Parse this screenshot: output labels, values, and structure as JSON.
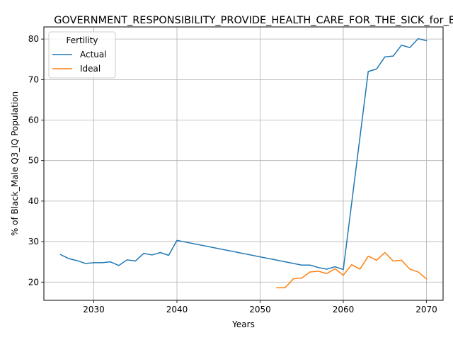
{
  "chart_data": {
    "type": "line",
    "title": "GOVERNMENT_RESPONSIBILITY_PROVIDE_HEALTH_CARE_FOR_THE_SICK_for_B",
    "xlabel": "Years",
    "ylabel": "% of Black_Male Q3_IQ Population",
    "xlim": [
      2024,
      2072
    ],
    "ylim": [
      15.5,
      83
    ],
    "xticks": [
      2030,
      2040,
      2050,
      2060,
      2070
    ],
    "yticks": [
      20,
      30,
      40,
      50,
      60,
      70,
      80
    ],
    "grid": true,
    "legend": {
      "title": "Fertility",
      "placement": "upper-left"
    },
    "series": [
      {
        "name": "Actual",
        "color": "#1f77b4",
        "x": [
          2026,
          2027,
          2028,
          2029,
          2030,
          2031,
          2032,
          2033,
          2034,
          2035,
          2036,
          2037,
          2038,
          2039,
          2040,
          2055,
          2056,
          2057,
          2058,
          2059,
          2060,
          2063,
          2064,
          2065,
          2066,
          2067,
          2068,
          2069,
          2070
        ],
        "y": [
          26.8,
          25.8,
          25.3,
          24.6,
          24.8,
          24.8,
          25.0,
          24.1,
          25.5,
          25.2,
          27.1,
          26.7,
          27.3,
          26.6,
          30.3,
          24.2,
          24.2,
          23.6,
          23.2,
          23.8,
          23.1,
          72.0,
          72.6,
          75.6,
          75.8,
          78.5,
          77.9,
          80.1,
          79.6
        ]
      },
      {
        "name": "Ideal",
        "color": "#ff7f0e",
        "x": [
          2052,
          2053,
          2054,
          2055,
          2056,
          2057,
          2058,
          2059,
          2060,
          2061,
          2062,
          2063,
          2064,
          2065,
          2066,
          2067,
          2068,
          2069,
          2070
        ],
        "y": [
          18.6,
          18.6,
          20.8,
          21.0,
          22.5,
          22.7,
          22.1,
          23.3,
          21.7,
          24.3,
          23.2,
          26.4,
          25.4,
          27.3,
          25.2,
          25.4,
          23.2,
          22.5,
          20.8
        ]
      }
    ]
  }
}
